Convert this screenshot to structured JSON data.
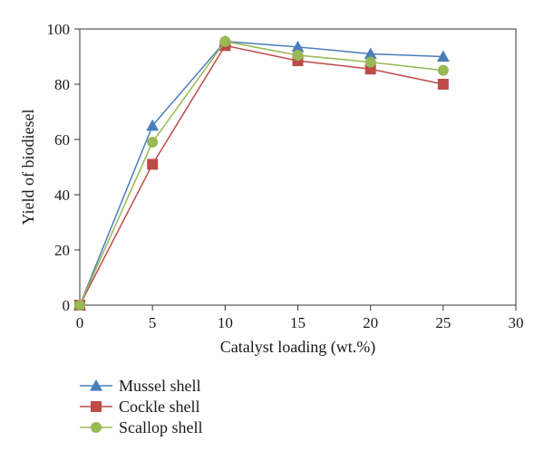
{
  "chart_data": {
    "type": "line",
    "title": "",
    "xlabel": "Catalyst loading (wt.%)",
    "ylabel": "Yield of biodiesel",
    "xlim": [
      0,
      30
    ],
    "ylim": [
      0,
      100
    ],
    "xticks": [
      0,
      5,
      10,
      15,
      20,
      25,
      30
    ],
    "yticks": [
      0,
      20,
      40,
      60,
      80,
      100
    ],
    "grid": false,
    "legend_position": "bottom-left",
    "x": [
      0,
      5,
      10,
      15,
      20,
      25
    ],
    "series": [
      {
        "name": "Mussel shell",
        "color": "#4a7ebb",
        "marker": "triangle",
        "values": [
          0,
          65,
          95.5,
          93.5,
          91,
          90
        ]
      },
      {
        "name": "Cockle shell",
        "color": "#be4b48",
        "marker": "square",
        "values": [
          0,
          51,
          94,
          88.5,
          85.5,
          80
        ]
      },
      {
        "name": "Scallop shell",
        "color": "#98b954",
        "marker": "circle",
        "values": [
          0,
          59,
          95.5,
          90.5,
          88,
          85
        ]
      }
    ]
  }
}
